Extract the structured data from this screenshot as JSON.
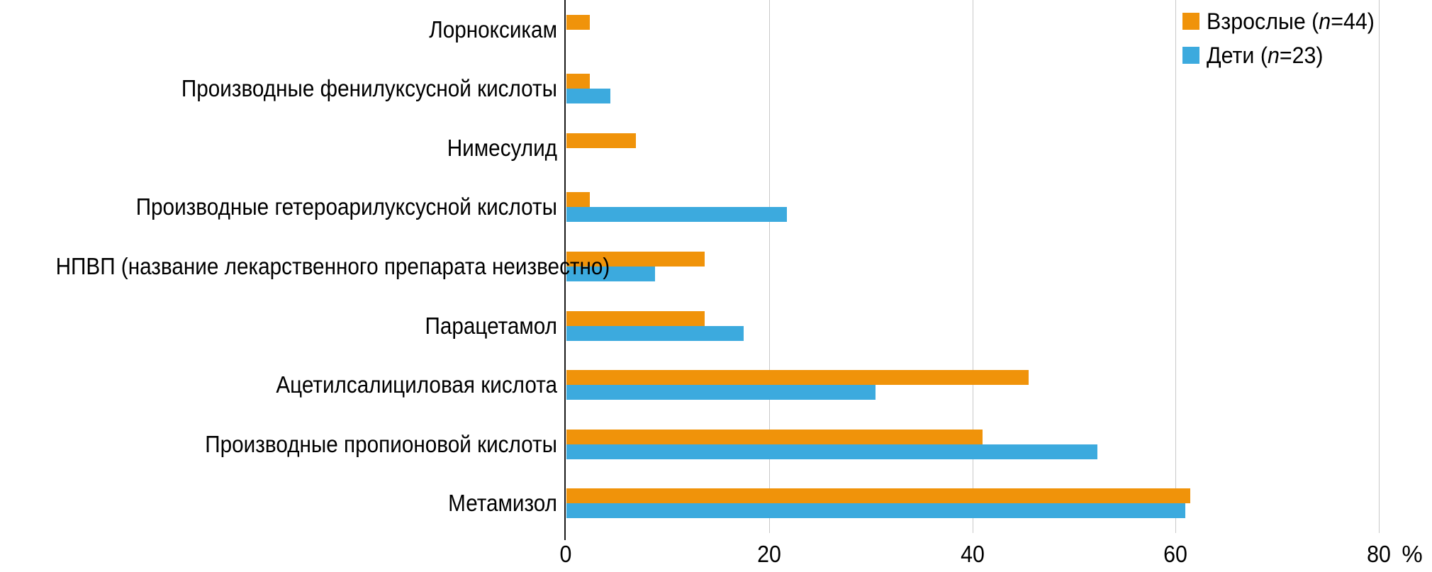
{
  "chart_data": {
    "type": "bar",
    "orientation": "horizontal",
    "title": "",
    "xlabel": "%",
    "ylabel": "",
    "xlim": [
      0,
      85
    ],
    "xticks": [
      0,
      20,
      40,
      60,
      80
    ],
    "grid": "vertical-gridlines",
    "legend_position": "top-right",
    "categories_top_to_bottom": [
      "Лорноксикам",
      "Производные фенилуксусной кислоты",
      "Нимесулид",
      "Производные гетероарилуксусной кислоты",
      "НПВП (название лекарственного препарата неизвестно)",
      "Парацетамол",
      "Ацетилсалициловая кислота",
      "Производные пропионовой кислоты",
      "Метамизол"
    ],
    "series": [
      {
        "name": "Взрослые (n=44)",
        "color": "#F0930A",
        "values": [
          2.3,
          2.3,
          6.8,
          2.3,
          13.6,
          13.6,
          45.5,
          40.9,
          61.4
        ]
      },
      {
        "name": "Дети (n=23)",
        "color": "#3CAADE",
        "values": [
          0,
          4.3,
          0,
          21.7,
          8.7,
          17.4,
          30.4,
          52.2,
          60.9
        ]
      }
    ]
  },
  "legend": {
    "items": [
      {
        "prefix": "Взрослые (",
        "n": "n",
        "suffix": "=44)",
        "color": "#F0930A"
      },
      {
        "prefix": "Дети (",
        "n": "n",
        "suffix": "=23)",
        "color": "#3CAADE"
      }
    ]
  },
  "axis": {
    "tick_labels": [
      "0",
      "20",
      "40",
      "60",
      "80"
    ],
    "unit_label": "%"
  },
  "colors": {
    "adults_bar": "#F0930A",
    "children_bar": "#3CAADE",
    "gridline": "#C9C9C9",
    "axis_line": "#1A1A1A",
    "text": "#000000",
    "background": "#FFFFFF"
  }
}
